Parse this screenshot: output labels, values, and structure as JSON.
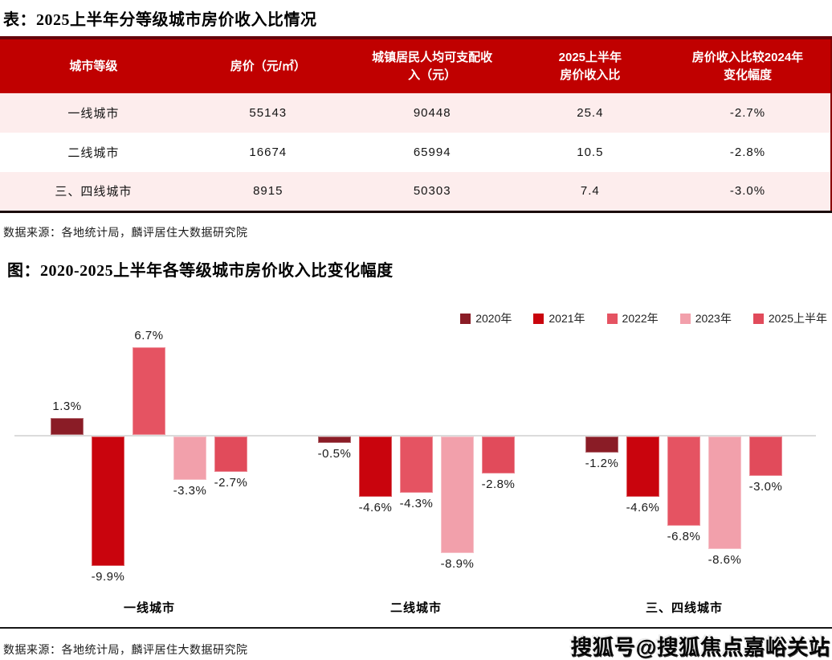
{
  "theme": {
    "table_header_bg": "#C00000",
    "table_top_border": "#66050A",
    "table_bottom_border": "#1A0B0B",
    "row_stripe_pink": "#FDEDED",
    "zero_line_gray": "#DBDBDB"
  },
  "table": {
    "title": "表：2025上半年分等级城市房价收入比情况",
    "columns": [
      "城市等级",
      "房价（元/㎡）",
      "城镇居民人均可支配收\n入（元）",
      "2025上半年\n房价收入比",
      "房价收入比较2024年\n变化幅度"
    ],
    "rows": [
      {
        "tier": "一线城市",
        "price": "55143",
        "income": "90448",
        "ratio": "25.4",
        "change": "-2.7%"
      },
      {
        "tier": "二线城市",
        "price": "16674",
        "income": "65994",
        "ratio": "10.5",
        "change": "-2.8%"
      },
      {
        "tier": "三、四线城市",
        "price": "8915",
        "income": "50303",
        "ratio": "7.4",
        "change": "-3.0%"
      }
    ],
    "source": "数据来源：各地统计局，麟评居住大数据研究院"
  },
  "chart": {
    "title": "图：2020-2025上半年各等级城市房价收入比变化幅度",
    "source": "数据来源：各地统计局，麟评居住大数据研究院"
  },
  "chart_data": {
    "type": "bar",
    "title": "图：2020-2025上半年各等级城市房价收入比变化幅度",
    "unit": "%",
    "categories": [
      "一线城市",
      "二线城市",
      "三、四线城市"
    ],
    "series": [
      {
        "name": "2020年",
        "color": "#8A1C26",
        "values": [
          1.3,
          -0.5,
          -1.2
        ]
      },
      {
        "name": "2021年",
        "color": "#C9040D",
        "values": [
          -9.9,
          -4.6,
          -4.6
        ]
      },
      {
        "name": "2022年",
        "color": "#E55362",
        "values": [
          6.7,
          -4.3,
          -6.8
        ]
      },
      {
        "name": "2023年",
        "color": "#F2A0AB",
        "values": [
          -3.3,
          -8.9,
          -8.6
        ]
      },
      {
        "name": "2025上半年",
        "color": "#E14B5B",
        "values": [
          -2.7,
          -2.8,
          -3.0
        ]
      }
    ],
    "value_labels": [
      [
        "1.3%",
        "-0.5%",
        "-1.2%"
      ],
      [
        "-9.9%",
        "-4.6%",
        "-4.6%"
      ],
      [
        "6.7%",
        "-4.3%",
        "-6.8%"
      ],
      [
        "-3.3%",
        "-8.9%",
        "-8.6%"
      ],
      [
        "-2.7%",
        "-2.8%",
        "-3.0%"
      ]
    ],
    "ylim": [
      -11,
      8
    ],
    "baseline": 0,
    "grid": false,
    "legend_position": "top-right"
  },
  "watermark": "搜狐号@搜狐焦点嘉峪关站"
}
